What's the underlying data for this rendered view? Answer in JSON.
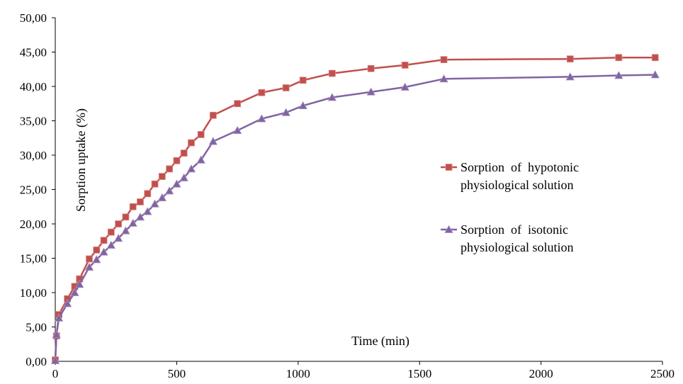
{
  "chart_data": {
    "type": "line",
    "title": "",
    "xlabel": "Time (min)",
    "ylabel": "Sorption uptake (%)",
    "xlim": [
      0,
      2500
    ],
    "ylim": [
      0,
      50
    ],
    "x_ticks": [
      "0",
      "500",
      "1000",
      "1500",
      "2000",
      "2500"
    ],
    "y_ticks": [
      "0,00",
      "5,00",
      "10,00",
      "15,00",
      "20,00",
      "25,00",
      "30,00",
      "35,00",
      "40,00",
      "45,00",
      "50,00"
    ],
    "grid": false,
    "legend_position": "right",
    "series": [
      {
        "name": "Sorption of hypotonic physiological solution",
        "legend_lines": [
          "Sorption  of  hypotonic",
          "physiological solution"
        ],
        "color": "#C0504D",
        "marker": "square",
        "x": [
          0,
          5,
          15,
          50,
          80,
          100,
          140,
          170,
          200,
          230,
          260,
          290,
          320,
          350,
          380,
          410,
          440,
          470,
          500,
          530,
          560,
          600,
          650,
          750,
          850,
          950,
          1020,
          1140,
          1300,
          1440,
          1600,
          2120,
          2320,
          2470
        ],
        "y": [
          0.2,
          3.7,
          6.8,
          9.1,
          10.9,
          12.0,
          14.9,
          16.2,
          17.6,
          18.8,
          20.0,
          21.0,
          22.5,
          23.2,
          24.4,
          25.8,
          26.9,
          28.0,
          29.2,
          30.3,
          31.8,
          33.0,
          35.8,
          37.5,
          39.1,
          39.8,
          40.9,
          41.9,
          42.6,
          43.1,
          43.9,
          44.0,
          44.2,
          44.2
        ]
      },
      {
        "name": "Sorption of isotonic physiological solution",
        "legend_lines": [
          "Sorption  of  isotonic",
          "physiological solution"
        ],
        "color": "#8064A2",
        "marker": "triangle",
        "x": [
          0,
          5,
          15,
          50,
          80,
          100,
          140,
          170,
          200,
          230,
          260,
          290,
          320,
          350,
          380,
          410,
          440,
          470,
          500,
          530,
          560,
          600,
          650,
          750,
          850,
          950,
          1020,
          1140,
          1300,
          1440,
          1600,
          2120,
          2320,
          2470
        ],
        "y": [
          0.1,
          3.9,
          6.3,
          8.4,
          10.0,
          11.2,
          13.7,
          14.8,
          15.9,
          16.9,
          17.9,
          19.0,
          20.1,
          21.0,
          21.8,
          22.9,
          23.8,
          24.8,
          25.8,
          26.7,
          28.0,
          29.3,
          32.0,
          33.6,
          35.3,
          36.2,
          37.2,
          38.4,
          39.2,
          39.9,
          41.1,
          41.4,
          41.6,
          41.7
        ]
      }
    ]
  }
}
